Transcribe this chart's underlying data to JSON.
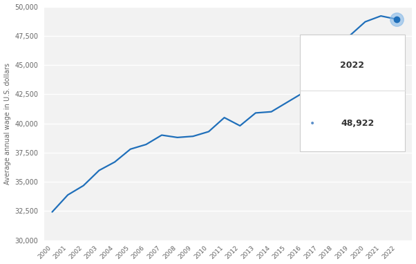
{
  "years": [
    2000,
    2001,
    2002,
    2003,
    2004,
    2005,
    2006,
    2007,
    2008,
    2009,
    2010,
    2011,
    2012,
    2013,
    2014,
    2015,
    2016,
    2017,
    2018,
    2019,
    2020,
    2021,
    2022
  ],
  "values": [
    32422,
    33880,
    34680,
    35980,
    36700,
    37800,
    38200,
    39000,
    38800,
    38900,
    39300,
    40500,
    39800,
    40900,
    41000,
    41800,
    42600,
    43700,
    45500,
    47500,
    48700,
    49200,
    48922
  ],
  "line_color": "#1f6fba",
  "highlight_color": "#85b8e8",
  "bg_color": "#ffffff",
  "plot_bg_color": "#f2f2f2",
  "grid_color": "#ffffff",
  "ylabel": "Average annual wage in U.S. dollars",
  "ylim": [
    30000,
    50000
  ],
  "yticks": [
    30000,
    32500,
    35000,
    37500,
    40000,
    42500,
    45000,
    47500,
    50000
  ],
  "tooltip_year": "2022",
  "tooltip_value": "48,922",
  "tooltip_dot_color": "#5b8fc9"
}
